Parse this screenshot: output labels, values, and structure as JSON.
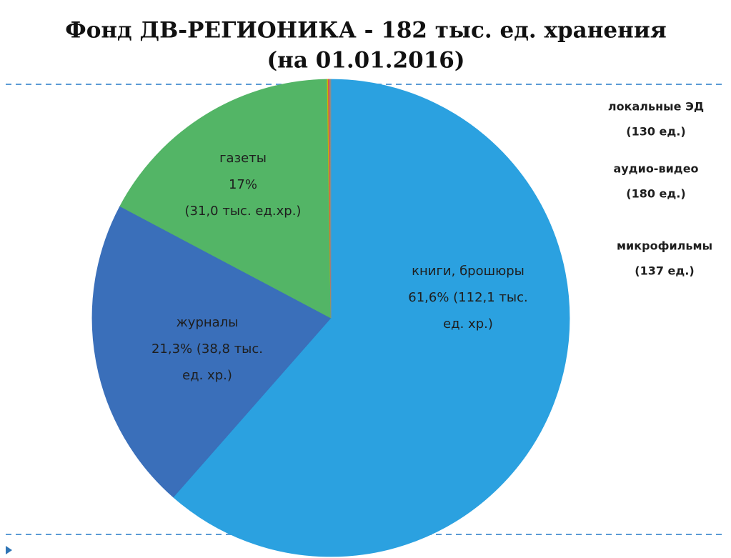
{
  "chart_data": {
    "type": "pie",
    "title": [
      "Фонд ДВ-РЕГИОНИКА - 182 тыс. ед. хранения",
      "(на 01.01.2016)"
    ],
    "categories": [
      "книги, брошюры",
      "журналы",
      "газеты",
      "локальные ЭД",
      "аудио-видео",
      "микрофильмы"
    ],
    "values": [
      112.1,
      38.8,
      31.0,
      0.13,
      0.18,
      0.137
    ],
    "value_labels": [
      [
        "61,6%  (112,1 тыс.",
        "ед. хр.)"
      ],
      [
        "21,3%  (38,8 тыс.",
        "ед. хр.)"
      ],
      [
        "17%",
        "(31,0 тыс. ед.хр.)"
      ],
      [
        "(130 ед.)"
      ],
      [
        "(180 ед.)"
      ],
      [
        "(137 ед.)"
      ]
    ],
    "colors": [
      "#2ba1e0",
      "#3a6fba",
      "#53b566",
      "#c9b800",
      "#d9534f",
      "#8c8c8c"
    ]
  }
}
